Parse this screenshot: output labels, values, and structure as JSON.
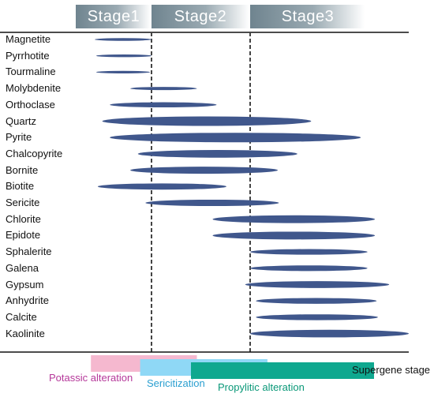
{
  "stages": [
    {
      "label": "Stage1"
    },
    {
      "label": "Stage2"
    },
    {
      "label": "Stage3"
    }
  ],
  "minerals": [
    {
      "name": "Magnetite",
      "start": 0.25,
      "end": 1.0
    },
    {
      "name": "Pyrrhotite",
      "start": 0.27,
      "end": 1.0
    },
    {
      "name": "Tourmaline",
      "start": 0.27,
      "end": 0.98
    },
    {
      "name": "Molybdenite",
      "start": 0.72,
      "end": 1.46
    },
    {
      "name": "Orthoclase",
      "start": 0.45,
      "end": 1.66
    },
    {
      "name": "Quartz",
      "start": 0.35,
      "end": 2.53
    },
    {
      "name": "Pyrite",
      "start": 0.45,
      "end": 2.96
    },
    {
      "name": "Chalcopyrite",
      "start": 0.82,
      "end": 2.41
    },
    {
      "name": "Bornite",
      "start": 0.72,
      "end": 2.24
    },
    {
      "name": "Biotite",
      "start": 0.29,
      "end": 1.76
    },
    {
      "name": "Sericite",
      "start": 0.92,
      "end": 2.25
    },
    {
      "name": "Chlorite",
      "start": 1.62,
      "end": 3.22
    },
    {
      "name": "Epidote",
      "start": 1.62,
      "end": 3.22
    },
    {
      "name": "Sphalerite",
      "start": 2.0,
      "end": 3.05
    },
    {
      "name": "Galena",
      "start": 2.0,
      "end": 3.05
    },
    {
      "name": "Gypsum",
      "start": 1.95,
      "end": 3.55
    },
    {
      "name": "Anhydrite",
      "start": 2.05,
      "end": 3.26
    },
    {
      "name": "Calcite",
      "start": 2.05,
      "end": 3.29
    },
    {
      "name": "Kaolinite",
      "start": 2.0,
      "end": 4.0
    }
  ],
  "alterations": [
    {
      "label": "Potassic alteration",
      "color": "#f5b8cf",
      "text_color": "#b5389a",
      "start": 0.2,
      "end": 1.46
    },
    {
      "label": "Sericitization",
      "color": "#8fd8f6",
      "text_color": "#2a9fd0",
      "start": 0.85,
      "end": 2.15
    },
    {
      "label": "Propylitic alteration",
      "color": "#0fa88f",
      "text_color": "#0a9878",
      "start": 1.4,
      "end": 3.2
    }
  ],
  "supergene_label": "Supergene stage",
  "colors": {
    "bar": "#40578c",
    "stage_gradient_dark": "#6f848f",
    "stage_gradient_light": "#ffffff",
    "divider": "#444444"
  }
}
